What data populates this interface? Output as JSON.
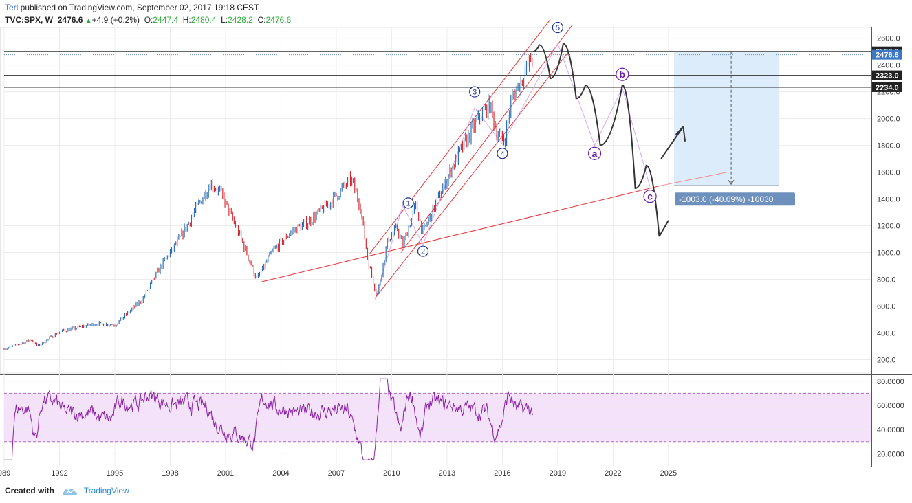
{
  "header": {
    "author": "Terl",
    "published": " published on TradingView.com, September 02, 2017 19:18 CEST",
    "symbol": "TVC:SPX, W",
    "last": "2476.6",
    "change": "+4.9 (+0.2%)",
    "o_label": "O:",
    "o_val": "2447.4",
    "h_label": "H:",
    "h_val": "2480.4",
    "l_label": "L:",
    "l_val": "2428.2",
    "c_label": "C:",
    "c_val": "2476.6"
  },
  "footer": {
    "created_with": "Created with",
    "brand": "TradingView"
  },
  "colors": {
    "up": "#2f6fb3",
    "down": "#d6292f",
    "channel": "#e8363a",
    "rsi": "#8b1fa3",
    "rsi_band": "#f3e2fa",
    "wave_pink": "#d7a7ee",
    "projection": "#dcecfb",
    "measure_label_bg": "#6d90bd",
    "wave_label": "#6a1aa3"
  },
  "chart_data": {
    "type": "line",
    "title": "",
    "symbol": "TVC:SPX",
    "interval": "W",
    "x_ticks": [
      "989",
      "1992",
      "1995",
      "1998",
      "2001",
      "2004",
      "2007",
      "2010",
      "2013",
      "2016",
      "2019",
      "2022",
      "2025"
    ],
    "y_ticks": [
      "200.0",
      "400.0",
      "600.0",
      "800.0",
      "1000.0",
      "1200.0",
      "1400.0",
      "1600.0",
      "1800.0",
      "2000.0",
      "2200.0",
      "2400.0",
      "2600.0"
    ],
    "ylim": [
      100,
      2680
    ],
    "xlim": [
      1989,
      2036
    ],
    "price_series": {
      "name": "SPX",
      "x": [
        1989.0,
        1990.5,
        1990.8,
        1992.0,
        1994.0,
        1995.0,
        1996.5,
        1997.5,
        1998.5,
        1999.5,
        2000.2,
        2000.7,
        2001.7,
        2002.7,
        2003.5,
        2004.5,
        2005.5,
        2006.5,
        2007.8,
        2008.3,
        2008.7,
        2009.2,
        2009.8,
        2010.3,
        2010.6,
        2011.3,
        2011.7,
        2012.5,
        2013.5,
        2014.5,
        2015.3,
        2015.7,
        2016.1,
        2016.5,
        2017.0,
        2017.67
      ],
      "y": [
        280,
        350,
        300,
        410,
        470,
        460,
        650,
        900,
        1100,
        1350,
        1520,
        1450,
        1150,
        800,
        1000,
        1150,
        1230,
        1350,
        1550,
        1350,
        950,
        670,
        1100,
        1180,
        1050,
        1350,
        1150,
        1400,
        1700,
        1950,
        2110,
        1900,
        1830,
        2150,
        2280,
        2476.6
      ]
    },
    "projection_path": {
      "name": "",
      "x": [
        2017.67,
        2018.0,
        2018.6,
        2019.3,
        2020.0,
        2020.5,
        2021.3,
        2022.5,
        2023.2,
        2023.8,
        2024.5
      ],
      "y": [
        2500,
        2550,
        2300,
        2560,
        2150,
        2250,
        1800,
        2250,
        1480,
        1650,
        1120
      ]
    },
    "wave_labels": [
      {
        "label": "1",
        "x": 2010.9,
        "y": 1370
      },
      {
        "label": "2",
        "x": 2011.7,
        "y": 1010
      },
      {
        "label": "3",
        "x": 2014.5,
        "y": 2200
      },
      {
        "label": "4",
        "x": 2016.0,
        "y": 1740
      },
      {
        "label": "5",
        "x": 2019.0,
        "y": 2680
      },
      {
        "label": "a",
        "x": 2021.0,
        "y": 1740
      },
      {
        "label": "b",
        "x": 2022.5,
        "y": 2330
      },
      {
        "label": "c",
        "x": 2024.0,
        "y": 1420
      }
    ],
    "horizontal_levels": [
      {
        "value": 2502.0,
        "label": "2502.0"
      },
      {
        "value": 2476.6,
        "label": "2476.6"
      },
      {
        "value": 2323.0,
        "label": "2323.0"
      },
      {
        "value": 2234.0,
        "label": "2234.0"
      }
    ],
    "measure": {
      "label": "-1003.0 (-40.09%) -10030",
      "from": 2502.0,
      "to": 1499.0
    },
    "rsi": {
      "name": "RSI",
      "y_ticks": [
        "20.0000",
        "40.0000",
        "60.0000",
        "80.0000"
      ],
      "ylim": [
        10,
        85
      ],
      "upper": 70,
      "lower": 30
    }
  }
}
